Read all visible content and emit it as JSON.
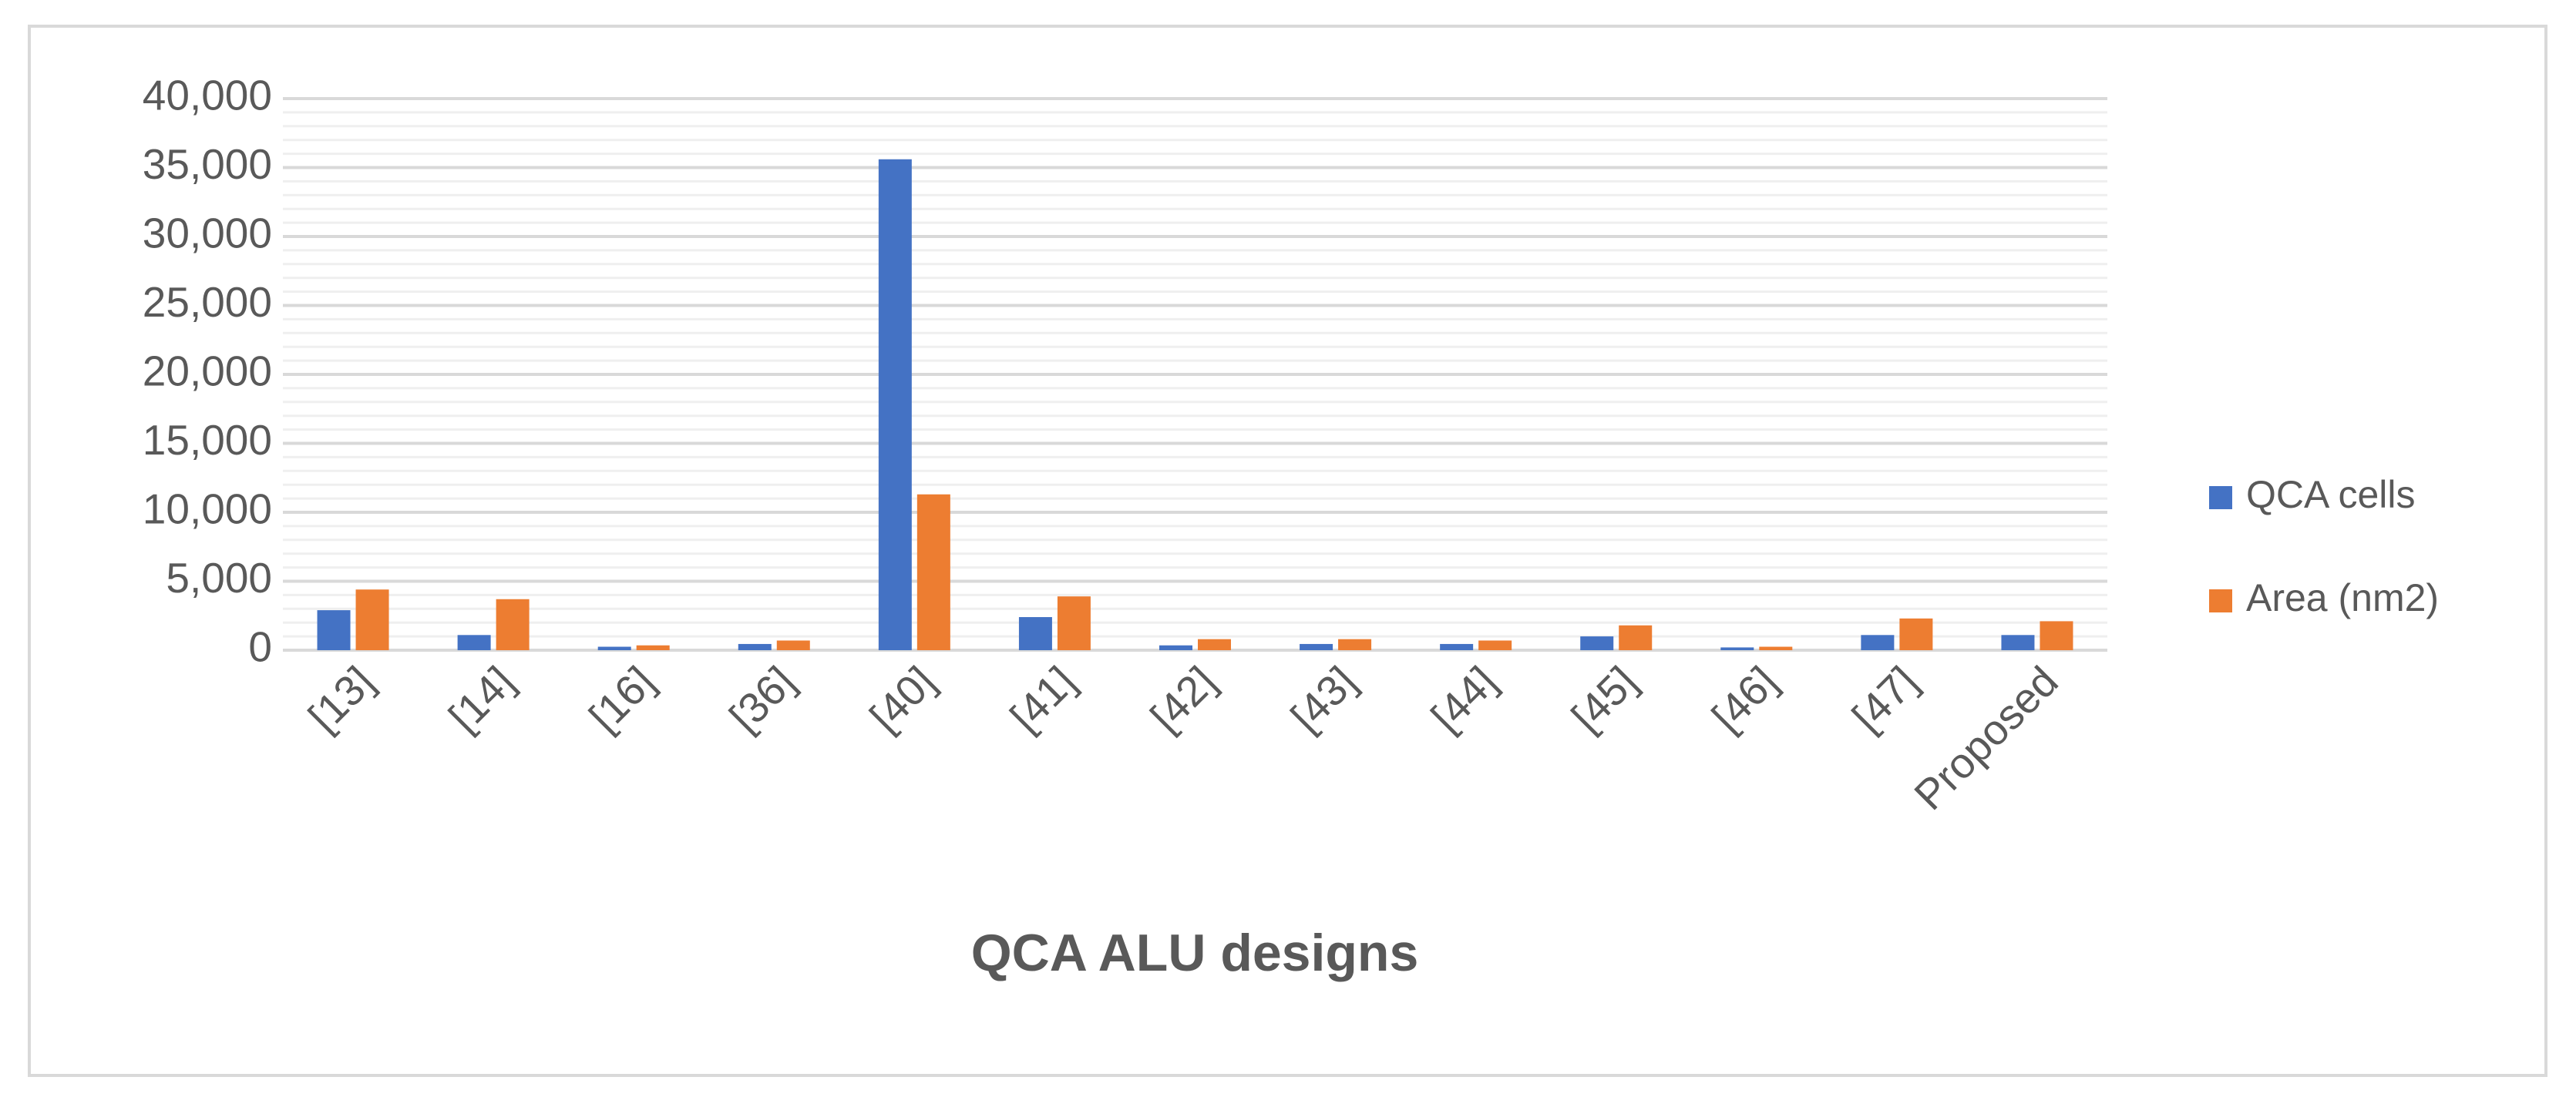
{
  "chart_data": {
    "type": "bar",
    "x_label": "QCA ALU designs",
    "categories": [
      "[13]",
      "[14]",
      "[16]",
      "[36]",
      "[40]",
      "[41]",
      "[42]",
      "[43]",
      "[44]",
      "[45]",
      "[46]",
      "[47]",
      "Proposed"
    ],
    "series": [
      {
        "name": "QCA cells",
        "color": "#4472c4",
        "values": [
          2900,
          1100,
          250,
          450,
          35600,
          2400,
          350,
          450,
          450,
          1000,
          200,
          1100,
          1100
        ]
      },
      {
        "name": "Area (nm2)",
        "color": "#ed7d31",
        "values": [
          4400,
          3700,
          350,
          700,
          11300,
          3900,
          800,
          800,
          700,
          1800,
          250,
          2300,
          2100
        ]
      }
    ],
    "ylim": [
      0,
      40000
    ],
    "yticks": [
      0,
      {
        "value": 5000,
        "label": "5,000"
      },
      {
        "value": 10000,
        "label": "10,000"
      },
      {
        "value": 15000,
        "label": "15,000"
      },
      {
        "value": 20000,
        "label": "20,000"
      },
      {
        "value": 25000,
        "label": "25,000"
      },
      {
        "value": 30000,
        "label": "30,000"
      },
      {
        "value": 35000,
        "label": "35,000"
      },
      {
        "value": 40000,
        "label": "40,000"
      }
    ],
    "minor_yticks": [
      1000,
      2000,
      3000,
      4000,
      6000,
      7000,
      8000,
      9000,
      11000,
      12000,
      13000,
      14000,
      16000,
      17000,
      18000,
      19000,
      21000,
      22000,
      23000,
      24000,
      26000,
      27000,
      28000,
      29000,
      31000,
      32000,
      33000,
      34000,
      36000,
      37000,
      38000,
      39000
    ],
    "grid": true,
    "legend": "right"
  }
}
